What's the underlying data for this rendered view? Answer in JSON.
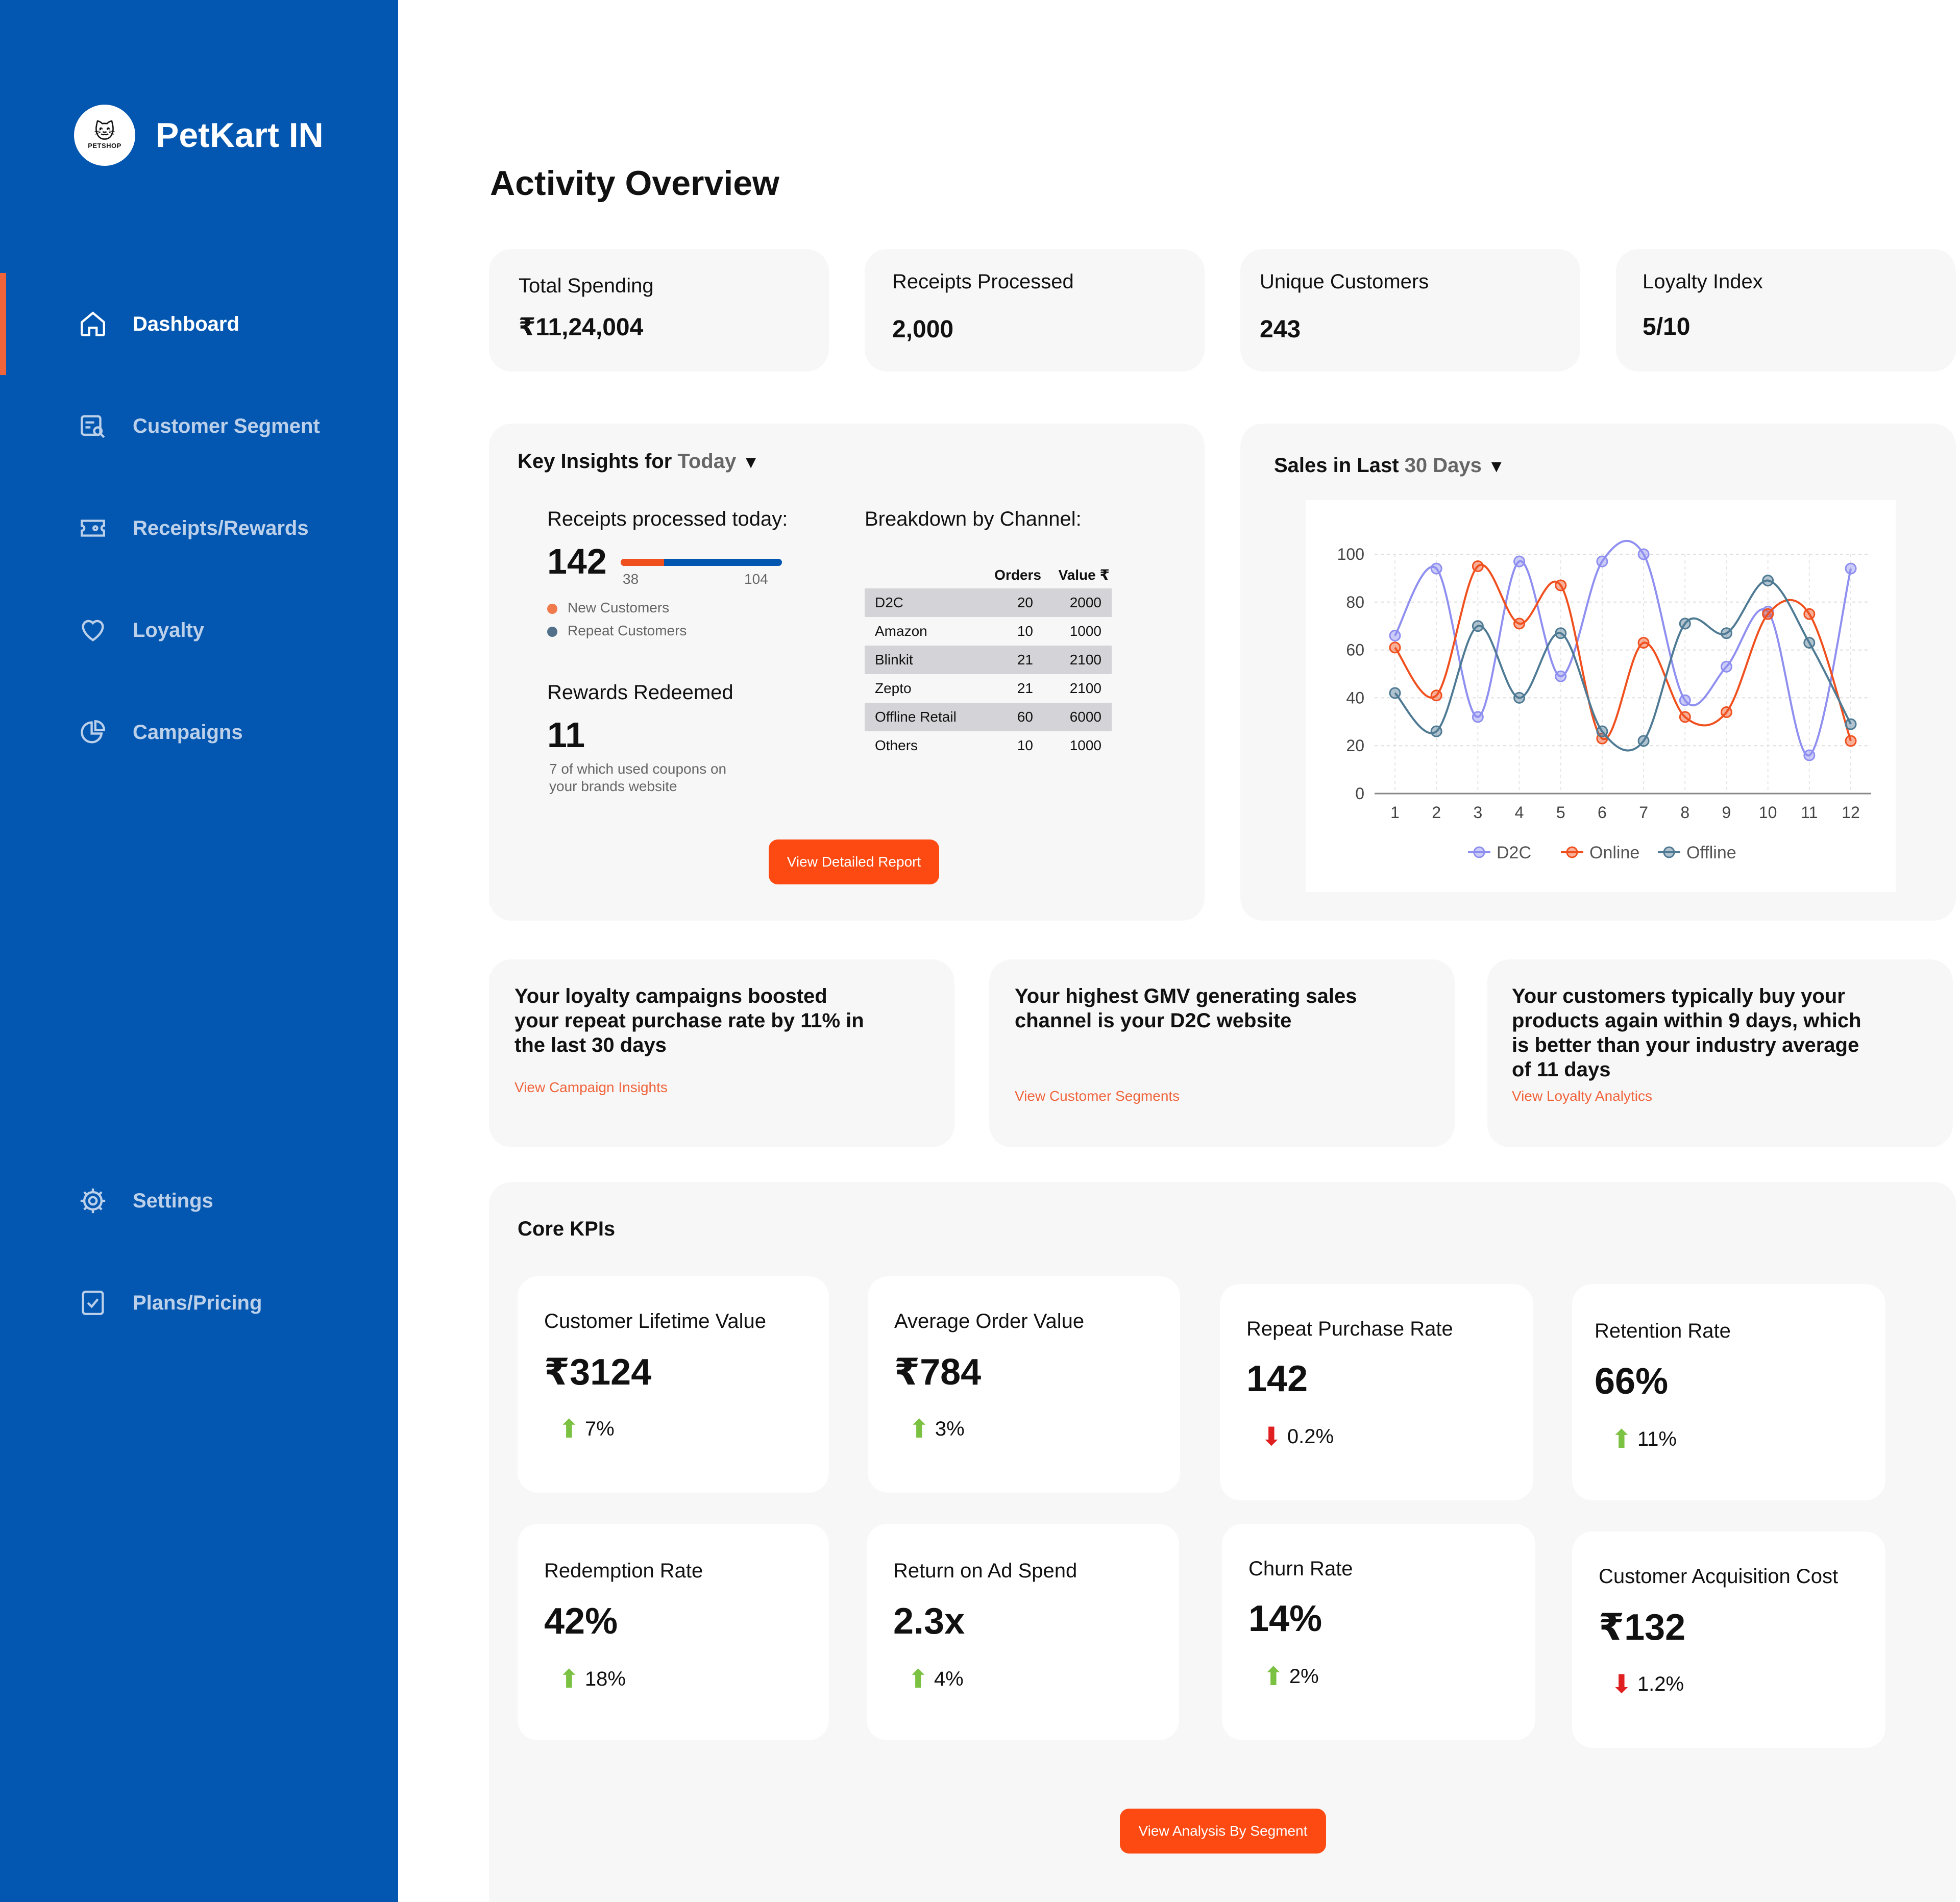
{
  "brand": {
    "name": "PetKart IN",
    "logo_text": "PETSHOP"
  },
  "nav": {
    "items": [
      {
        "label": "Dashboard",
        "icon": "home-icon"
      },
      {
        "label": "Customer Segment",
        "icon": "segment-search-icon"
      },
      {
        "label": "Receipts/Rewards",
        "icon": "ticket-icon"
      },
      {
        "label": "Loyalty",
        "icon": "heart-icon"
      },
      {
        "label": "Campaigns",
        "icon": "pie-chart-icon"
      }
    ],
    "bottom_items": [
      {
        "label": "Settings",
        "icon": "gear-icon"
      },
      {
        "label": "Plans/Pricing",
        "icon": "checklist-icon"
      }
    ]
  },
  "page": {
    "title": "Activity Overview"
  },
  "stats": [
    {
      "label": "Total Spending",
      "value": "₹11,24,004"
    },
    {
      "label": "Receipts Processed",
      "value": "2,000"
    },
    {
      "label": "Unique Customers",
      "value": "243"
    },
    {
      "label": "Loyalty Index",
      "value": "5/10"
    }
  ],
  "insights_panel": {
    "title_prefix": "Key Insights for",
    "period": "Today",
    "receipts_label": "Receipts processed today:",
    "receipts_value": "142",
    "split": {
      "new": 38,
      "repeat": 104
    },
    "split_labels": {
      "new": "38",
      "repeat": "104"
    },
    "legend_new": "New Customers",
    "legend_repeat": "Repeat Customers",
    "rewards_label": "Rewards Redeemed",
    "rewards_value": "11",
    "rewards_note_1": "7 of which used coupons on",
    "rewards_note_2": "your brands website",
    "breakdown_label": "Breakdown by Channel:",
    "table_headers": [
      "Orders",
      "Value ₹"
    ],
    "table_rows": [
      {
        "channel": "D2C",
        "orders": "20",
        "value": "2000"
      },
      {
        "channel": "Amazon",
        "orders": "10",
        "value": "1000"
      },
      {
        "channel": "Blinkit",
        "orders": "21",
        "value": "2100"
      },
      {
        "channel": "Zepto",
        "orders": "21",
        "value": "2100"
      },
      {
        "channel": "Offline Retail",
        "orders": "60",
        "value": "6000"
      },
      {
        "channel": "Others",
        "orders": "10",
        "value": "1000"
      }
    ],
    "button": "View Detailed Report"
  },
  "sales_panel": {
    "title_prefix": "Sales in Last",
    "period": "30 Days"
  },
  "chart_data": {
    "type": "line",
    "x": [
      1,
      2,
      3,
      4,
      5,
      6,
      7,
      8,
      9,
      10,
      11,
      12
    ],
    "ylim": [
      0,
      100
    ],
    "yticks": [
      0,
      20,
      40,
      60,
      80,
      100
    ],
    "grid": true,
    "smooth": true,
    "legend_position": "bottom",
    "series": [
      {
        "name": "D2C",
        "color": "#8e8ff0",
        "values": [
          66,
          94,
          32,
          97,
          49,
          97,
          100,
          39,
          53,
          76,
          16,
          94
        ]
      },
      {
        "name": "Online",
        "color": "#f0501e",
        "values": [
          61,
          41,
          95,
          71,
          87,
          23,
          63,
          32,
          34,
          75,
          75,
          22
        ]
      },
      {
        "name": "Offline",
        "color": "#4f7a94",
        "values": [
          42,
          26,
          70,
          40,
          67,
          26,
          22,
          71,
          67,
          89,
          63,
          29
        ]
      }
    ]
  },
  "insight_cards": [
    {
      "lines": [
        "Your loyalty campaigns boosted",
        "your repeat purchase rate by 11% in",
        "the last 30 days"
      ],
      "link": "View Campaign Insights"
    },
    {
      "lines": [
        "Your highest GMV generating sales",
        "channel is your D2C website"
      ],
      "link": "View Customer Segments"
    },
    {
      "lines": [
        "Your customers typically buy your",
        "products again within 9 days, which",
        "is better than your industry average",
        "of 11 days"
      ],
      "link": "View Loyalty Analytics"
    }
  ],
  "core_kpis": {
    "title": "Core KPIs",
    "items": [
      {
        "label": "Customer Lifetime Value",
        "value": "₹3124",
        "delta": "7%",
        "direction": "up"
      },
      {
        "label": "Average Order Value",
        "value": "₹784",
        "delta": "3%",
        "direction": "up"
      },
      {
        "label": "Repeat Purchase Rate",
        "value": "142",
        "delta": "0.2%",
        "direction": "down"
      },
      {
        "label": "Retention Rate",
        "value": "66%",
        "delta": "11%",
        "direction": "up"
      },
      {
        "label": "Redemption Rate",
        "value": "42%",
        "delta": "18%",
        "direction": "up"
      },
      {
        "label": "Return on Ad Spend",
        "value": "2.3x",
        "delta": "4%",
        "direction": "up"
      },
      {
        "label": "Churn Rate",
        "value": "14%",
        "delta": "2%",
        "direction": "up"
      },
      {
        "label": "Customer Acquisition Cost",
        "value": "₹132",
        "delta": "1.2%",
        "direction": "down"
      }
    ],
    "button": "View Analysis By Segment"
  },
  "colors": {
    "sidebar": "#0457b0",
    "accent": "#fc4a12",
    "up": "#7cc242",
    "down": "#e02020"
  }
}
